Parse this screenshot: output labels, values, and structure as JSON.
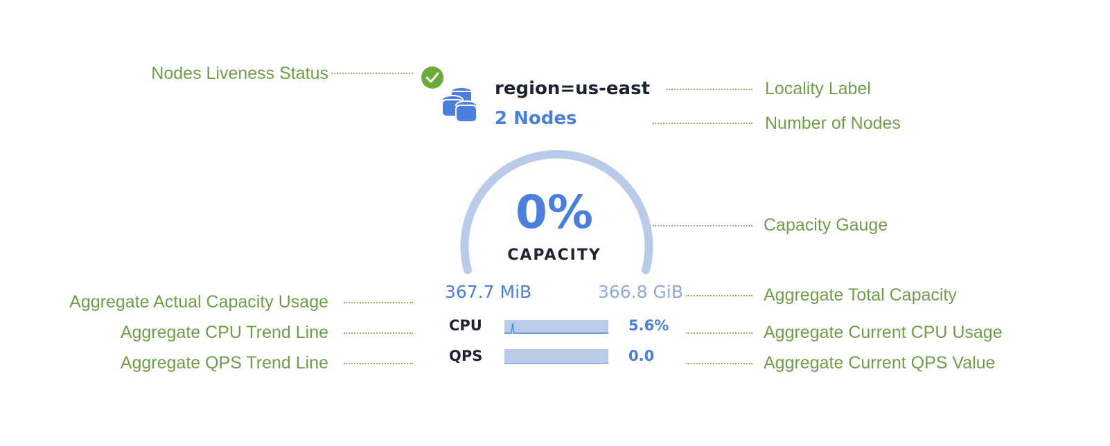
{
  "locality_label": "region=us-east",
  "node_count": "2 Nodes",
  "liveness_status": "live",
  "capacity": {
    "percent": "0%",
    "label": "CAPACITY",
    "used": "367.7 MiB",
    "total": "366.8 GiB",
    "fraction": 0.0
  },
  "cpu": {
    "label": "CPU",
    "value": "5.6%"
  },
  "qps": {
    "label": "QPS",
    "value": "0.0"
  },
  "annotations": {
    "liveness": "Nodes Liveness Status",
    "locality": "Locality Label",
    "nodes": "Number of Nodes",
    "gauge": "Capacity Gauge",
    "usage": "Aggregate Actual Capacity Usage",
    "total": "Aggregate Total Capacity",
    "cpu_trend": "Aggregate CPU Trend Line",
    "cpu_current": "Aggregate Current CPU Usage",
    "qps_trend": "Aggregate QPS Trend Line",
    "qps_current": "Aggregate Current QPS Value"
  },
  "colors": {
    "annotation": "#6f9e48",
    "accent": "#4a7fe0",
    "gauge": "#b9cbe9",
    "live": "#6aab3a"
  }
}
